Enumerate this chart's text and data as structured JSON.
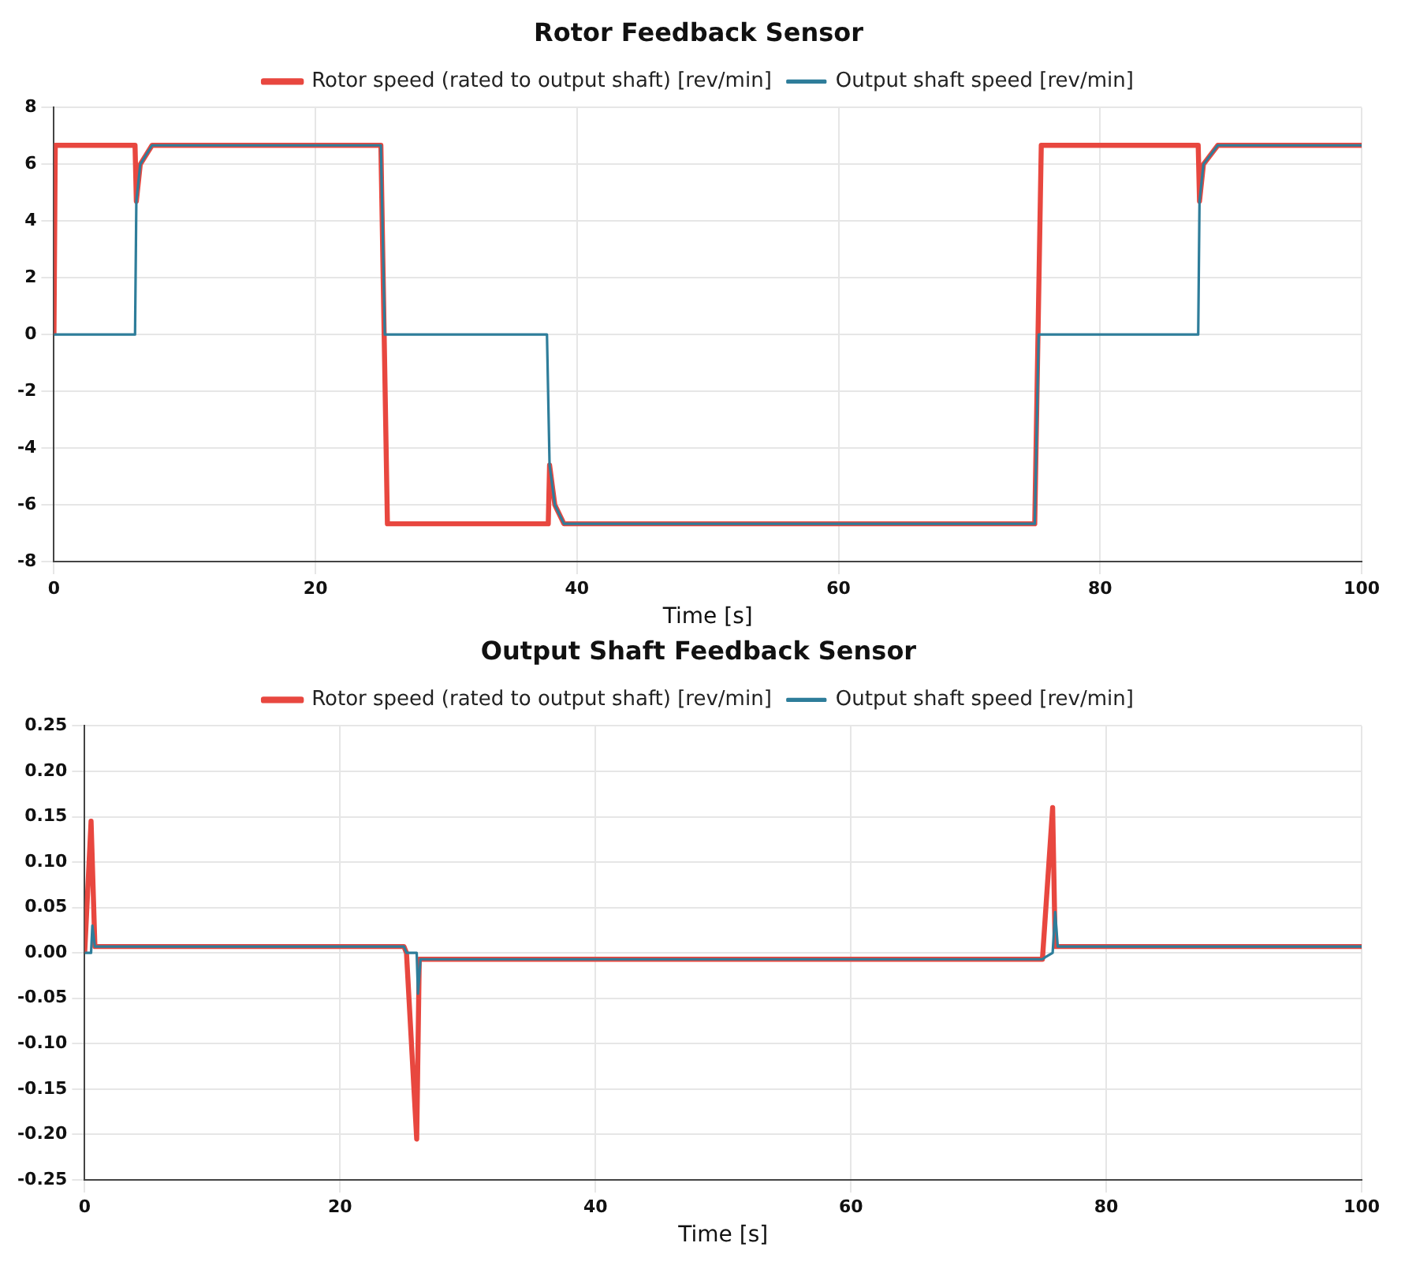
{
  "chart_data": [
    {
      "type": "line",
      "title": "Rotor Feedback Sensor",
      "xlabel": "Time [s]",
      "xlim": [
        0,
        100
      ],
      "xticks": [
        0,
        20,
        40,
        60,
        80,
        100
      ],
      "ylim": [
        -8,
        8
      ],
      "yticks": [
        -8,
        -6,
        -4,
        -2,
        0,
        2,
        4,
        6,
        8
      ],
      "grid": true,
      "legend": "top",
      "marker": "none",
      "line_style": "solid",
      "series": [
        {
          "name": "Rotor speed (rated to output shaft) [rev/min]",
          "color": "#e8473f",
          "x": [
            0,
            0.1,
            6.2,
            6.3,
            6.6,
            7.5,
            25,
            25.5,
            37.8,
            37.9,
            38.3,
            39,
            75,
            75.5,
            87.5,
            87.6,
            87.9,
            89,
            100
          ],
          "values": [
            0,
            6.67,
            6.67,
            4.7,
            6.0,
            6.67,
            6.67,
            -6.67,
            -6.67,
            -4.6,
            -6.0,
            -6.67,
            -6.67,
            6.67,
            6.67,
            4.7,
            6.0,
            6.67,
            6.67
          ]
        },
        {
          "name": "Output shaft speed [rev/min]",
          "color": "#2e7d9a",
          "x": [
            0,
            6.2,
            6.3,
            6.6,
            7.5,
            25,
            25.3,
            37.7,
            37.9,
            38.3,
            39,
            75,
            75.3,
            87.5,
            87.6,
            87.9,
            89,
            100
          ],
          "values": [
            0,
            0,
            4.7,
            6.0,
            6.67,
            6.67,
            0,
            0,
            -4.6,
            -6.0,
            -6.67,
            -6.67,
            0,
            0,
            4.7,
            6.0,
            6.67,
            6.67
          ]
        }
      ]
    },
    {
      "type": "line",
      "title": "Output Shaft Feedback Sensor",
      "xlabel": "Time [s]",
      "xlim": [
        0,
        100
      ],
      "xticks": [
        0,
        20,
        40,
        60,
        80,
        100
      ],
      "ylim": [
        -0.25,
        0.25
      ],
      "yticks": [
        {
          "value": -0.25,
          "label": "-0.25"
        },
        {
          "value": -0.2,
          "label": "-0.20"
        },
        {
          "value": -0.15,
          "label": "-0.15"
        },
        {
          "value": -0.1,
          "label": "-0.10"
        },
        {
          "value": -0.05,
          "label": "-0.05"
        },
        {
          "value": 0,
          "label": "0.00"
        },
        {
          "value": 0.05,
          "label": "0.05"
        },
        {
          "value": 0.1,
          "label": "0.10"
        },
        {
          "value": 0.15,
          "label": "0.15"
        },
        {
          "value": 0.2,
          "label": "0.20"
        },
        {
          "value": 0.25,
          "label": "0.25"
        }
      ],
      "grid": true,
      "legend": "top",
      "marker": "none",
      "line_style": "solid",
      "series": [
        {
          "name": "Rotor speed (rated to output shaft) [rev/min]",
          "color": "#e8473f",
          "x": [
            0,
            0.5,
            0.8,
            25,
            25.2,
            26,
            26.2,
            75,
            75.8,
            76,
            100
          ],
          "values": [
            0,
            0.145,
            0.007,
            0.007,
            0,
            -0.205,
            -0.007,
            -0.007,
            0.16,
            0.007,
            0.007
          ]
        },
        {
          "name": "Output shaft speed [rev/min]",
          "color": "#2e7d9a",
          "x": [
            0,
            0.5,
            0.6,
            0.8,
            25,
            25.2,
            26,
            26.1,
            26.3,
            75,
            75.2,
            75.8,
            76,
            76.2,
            100
          ],
          "values": [
            0,
            0,
            0.03,
            0.007,
            0.007,
            0,
            0,
            -0.045,
            -0.007,
            -0.007,
            -0.005,
            0,
            0.045,
            0.007,
            0.007
          ]
        }
      ]
    }
  ]
}
